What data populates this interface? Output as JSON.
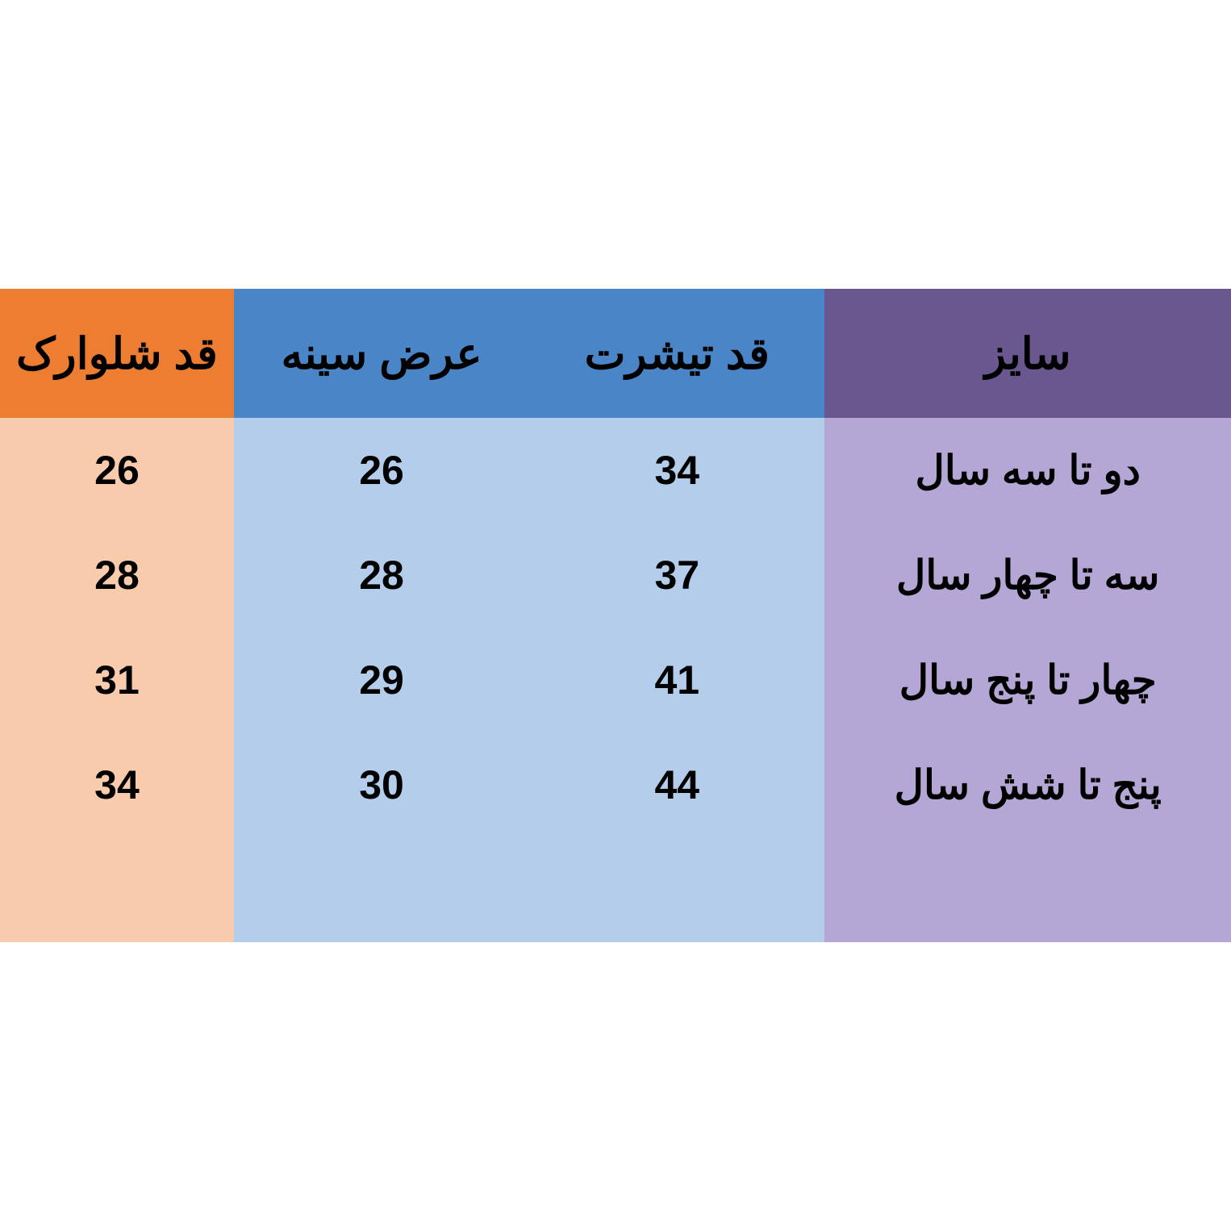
{
  "table": {
    "type": "table",
    "direction": "rtl",
    "background_color": "#ffffff",
    "text_color": "#000000",
    "header_fontsize": 54,
    "cell_fontsize": 50,
    "font_weight": "bold",
    "columns": [
      {
        "key": "size",
        "label": "سایز",
        "header_bg": "#6b578f",
        "body_bg": "#b4a7d6",
        "width_pct": 33
      },
      {
        "key": "tshirt",
        "label": "قد تیشرت",
        "header_bg": "#4a86c7",
        "body_bg": "#b3cdea",
        "width_pct": 24
      },
      {
        "key": "chest",
        "label": "عرض سینه",
        "header_bg": "#4a86c7",
        "body_bg": "#b3cdea",
        "width_pct": 24
      },
      {
        "key": "shorts",
        "label": "قد شلوارک",
        "header_bg": "#ed7d31",
        "body_bg": "#f8cbad",
        "width_pct": 19
      }
    ],
    "rows": [
      {
        "size": "دو تا سه سال",
        "tshirt": "34",
        "chest": "26",
        "shorts": "26"
      },
      {
        "size": "سه تا چهار سال",
        "tshirt": "37",
        "chest": "28",
        "shorts": "28"
      },
      {
        "size": "چهار تا پنج سال",
        "tshirt": "41",
        "chest": "29",
        "shorts": "31"
      },
      {
        "size": "پنج تا شش سال",
        "tshirt": "44",
        "chest": "30",
        "shorts": "34"
      }
    ]
  }
}
